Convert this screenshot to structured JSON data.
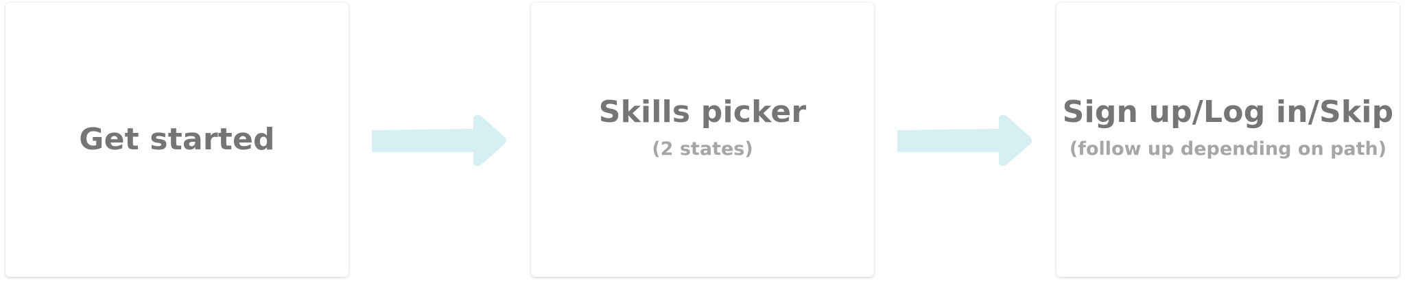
{
  "colors": {
    "card_background": "#ffffff",
    "title_text": "#757575",
    "subtitle_text": "#a6a6a6",
    "arrow": "#d6eff2"
  },
  "steps": [
    {
      "title": "Get started",
      "subtitle": ""
    },
    {
      "title": "Skills picker",
      "subtitle": "(2 states)"
    },
    {
      "title": "Sign up/Log in/Skip",
      "subtitle": "(follow up depending on path)"
    }
  ],
  "connectors": [
    {
      "icon": "right-arrow-icon"
    },
    {
      "icon": "right-arrow-icon"
    }
  ]
}
